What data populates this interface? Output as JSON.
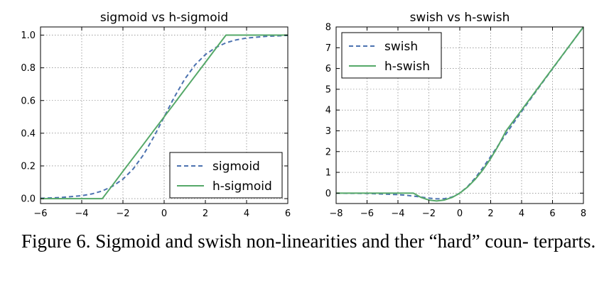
{
  "chart_data": [
    {
      "type": "line",
      "title": "sigmoid vs h-sigmoid",
      "xlabel": "",
      "ylabel": "",
      "xlim": [
        -6,
        6
      ],
      "ylim": [
        -0.03,
        1.05
      ],
      "xticks": [
        -6,
        -4,
        -2,
        0,
        2,
        4,
        6
      ],
      "xtick_labels": [
        "−6",
        "−4",
        "−2",
        "0",
        "2",
        "4",
        "6"
      ],
      "yticks": [
        0,
        0.2,
        0.4,
        0.6,
        0.8,
        1.0
      ],
      "ytick_labels": [
        "0.0",
        "0.2",
        "0.4",
        "0.6",
        "0.8",
        "1.0"
      ],
      "grid": true,
      "legend_position": "lower-right",
      "x": [
        -6,
        -5,
        -4,
        -3.5,
        -3,
        -2.5,
        -2,
        -1.5,
        -1,
        -0.5,
        0,
        0.5,
        1,
        1.5,
        2,
        2.5,
        3,
        3.5,
        4,
        5,
        6
      ],
      "series": [
        {
          "name": "sigmoid",
          "style": "dashed",
          "color": "#4c72b0",
          "values": [
            0.002,
            0.007,
            0.018,
            0.029,
            0.047,
            0.076,
            0.119,
            0.182,
            0.269,
            0.378,
            0.5,
            0.622,
            0.731,
            0.818,
            0.881,
            0.924,
            0.953,
            0.971,
            0.982,
            0.993,
            0.998
          ]
        },
        {
          "name": "h-sigmoid",
          "style": "solid",
          "color": "#55a868",
          "values": [
            0,
            0,
            0,
            0,
            0,
            0.083,
            0.167,
            0.25,
            0.333,
            0.417,
            0.5,
            0.583,
            0.667,
            0.75,
            0.833,
            0.917,
            1,
            1,
            1,
            1,
            1
          ]
        }
      ]
    },
    {
      "type": "line",
      "title": "swish vs h-swish",
      "xlabel": "",
      "ylabel": "",
      "xlim": [
        -8,
        8
      ],
      "ylim": [
        -0.5,
        8
      ],
      "xticks": [
        -8,
        -6,
        -4,
        -2,
        0,
        2,
        4,
        6,
        8
      ],
      "xtick_labels": [
        "−8",
        "−6",
        "−4",
        "−2",
        "0",
        "2",
        "4",
        "6",
        "8"
      ],
      "yticks": [
        0,
        1,
        2,
        3,
        4,
        5,
        6,
        7,
        8
      ],
      "ytick_labels": [
        "0",
        "1",
        "2",
        "3",
        "4",
        "5",
        "6",
        "7",
        "8"
      ],
      "grid": true,
      "legend_position": "upper-left",
      "x": [
        -8,
        -6,
        -4,
        -3.5,
        -3,
        -2.5,
        -2,
        -1.5,
        -1,
        -0.5,
        0,
        0.5,
        1,
        1.5,
        2,
        2.5,
        3,
        3.5,
        4,
        5,
        6,
        7,
        8
      ],
      "series": [
        {
          "name": "swish",
          "style": "dashed",
          "color": "#4c72b0",
          "values": [
            -0.003,
            -0.015,
            -0.072,
            -0.102,
            -0.142,
            -0.19,
            -0.238,
            -0.274,
            -0.269,
            -0.189,
            0,
            0.311,
            0.731,
            1.227,
            1.762,
            2.31,
            2.858,
            3.398,
            3.928,
            4.967,
            5.985,
            6.994,
            7.997
          ]
        },
        {
          "name": "h-swish",
          "style": "solid",
          "color": "#55a868",
          "values": [
            0,
            0,
            0,
            0,
            0,
            -0.208,
            -0.333,
            -0.375,
            -0.333,
            -0.208,
            0,
            0.292,
            0.667,
            1.125,
            1.667,
            2.292,
            3,
            3.5,
            4,
            5,
            6,
            7,
            8
          ]
        }
      ]
    }
  ],
  "caption": "Figure 6. Sigmoid and swish non-linearities and ther “hard” coun- terparts."
}
